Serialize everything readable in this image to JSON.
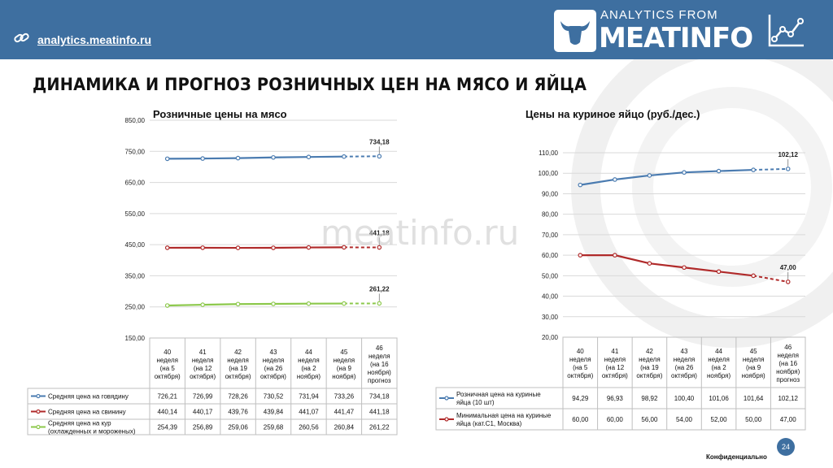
{
  "header": {
    "site_link": "analytics.meatinfo.ru",
    "logo_top": "ANALYTICS FROM",
    "logo_main": "MEATINFO"
  },
  "page_title": "ДИНАМИКА И ПРОГНОЗ РОЗНИЧНЫХ ЦЕН НА МЯСО И ЯЙЦА",
  "watermark": "meatinfo.ru",
  "footer": {
    "confidential": "Конфиденциально",
    "page_number": "24"
  },
  "colors": {
    "header": "#3e6fa0",
    "beef": "#4a7bb0",
    "pork": "#b02a2a",
    "chicken": "#8cc84b",
    "egg_retail": "#4a7bb0",
    "egg_min": "#b02a2a"
  },
  "chart_data": [
    {
      "type": "line",
      "title": "Розничные цены на мясо",
      "categories": [
        [
          "40",
          "неделя",
          "(на 5",
          "октября)"
        ],
        [
          "41",
          "неделя",
          "(на 12",
          "октября)"
        ],
        [
          "42",
          "неделя",
          "(на 19",
          "октября)"
        ],
        [
          "43",
          "неделя",
          "(на 26",
          "октября)"
        ],
        [
          "44",
          "неделя",
          "(на 2",
          "ноября)"
        ],
        [
          "45",
          "неделя",
          "(на 9",
          "ноября)"
        ],
        [
          "46",
          "неделя",
          "(на 16",
          "ноября)",
          "прогноз"
        ]
      ],
      "ylim": [
        150,
        850
      ],
      "yticks": [
        "150,00",
        "250,00",
        "350,00",
        "450,00",
        "550,00",
        "650,00",
        "750,00",
        "850,00"
      ],
      "series": [
        {
          "name": "Средняя цена на говядину",
          "values": [
            726.21,
            726.99,
            728.26,
            730.52,
            731.94,
            733.26,
            734.18
          ],
          "labels": [
            "726,21",
            "726,99",
            "728,26",
            "730,52",
            "731,94",
            "733,26",
            "734,18"
          ],
          "end_label": "734,18"
        },
        {
          "name": "Средняя цена на свинину",
          "values": [
            440.14,
            440.17,
            439.76,
            439.84,
            441.07,
            441.47,
            441.18
          ],
          "labels": [
            "440,14",
            "440,17",
            "439,76",
            "439,84",
            "441,07",
            "441,47",
            "441,18"
          ],
          "end_label": "441,18"
        },
        {
          "name": "Средняя цена на кур (охлажденных и мороженых)",
          "legend_lines": [
            "Средняя цена на кур",
            "(охлажденных и мороженых)"
          ],
          "values": [
            254.39,
            256.89,
            259.06,
            259.68,
            260.56,
            260.84,
            261.22
          ],
          "labels": [
            "254,39",
            "256,89",
            "259,06",
            "259,68",
            "260,56",
            "260,84",
            "261,22"
          ],
          "end_label": "261,22"
        }
      ],
      "forecast_from_index": 5
    },
    {
      "type": "line",
      "title": "Цены на куриное яйцо (руб./дес.)",
      "categories": [
        [
          "40",
          "неделя",
          "(на 5",
          "октября)"
        ],
        [
          "41",
          "неделя",
          "(на 12",
          "октября)"
        ],
        [
          "42",
          "неделя",
          "(на 19",
          "октября)"
        ],
        [
          "43",
          "неделя",
          "(на 26",
          "октября)"
        ],
        [
          "44",
          "неделя",
          "(на 2",
          "ноября)"
        ],
        [
          "45",
          "неделя",
          "(на 9",
          "ноября)"
        ],
        [
          "46",
          "неделя",
          "(на 16",
          "ноября)",
          "прогноз"
        ]
      ],
      "ylim": [
        20,
        110
      ],
      "yticks": [
        "20,00",
        "30,00",
        "40,00",
        "50,00",
        "60,00",
        "70,00",
        "80,00",
        "90,00",
        "100,00",
        "110,00"
      ],
      "series": [
        {
          "name": "Розничная цена на куриные яйца (10 шт)",
          "legend_lines": [
            "Розничная цена на куриные",
            "яйца (10 шт)"
          ],
          "values": [
            94.29,
            96.93,
            98.92,
            100.4,
            101.06,
            101.64,
            102.12
          ],
          "labels": [
            "94,29",
            "96,93",
            "98,92",
            "100,40",
            "101,06",
            "101,64",
            "102,12"
          ],
          "end_label": "102,12"
        },
        {
          "name": "Минимальная цена на куриные яйца (кат.С1, Москва)",
          "legend_lines": [
            "Минимальная цена на куриные",
            "яйца (кат.С1, Москва)"
          ],
          "values": [
            60.0,
            60.0,
            56.0,
            54.0,
            52.0,
            50.0,
            47.0
          ],
          "labels": [
            "60,00",
            "60,00",
            "56,00",
            "54,00",
            "52,00",
            "50,00",
            "47,00"
          ],
          "end_label": "47,00"
        }
      ],
      "forecast_from_index": 5
    }
  ]
}
